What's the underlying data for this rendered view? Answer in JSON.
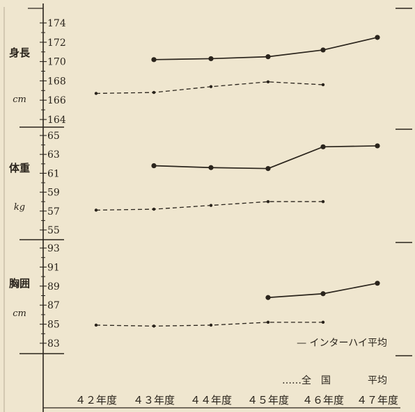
{
  "chart_data": {
    "type": "line",
    "categories": [
      "４２年度",
      "４３年度",
      "４４年度",
      "４５年度",
      "４６年度",
      "４７年度"
    ],
    "panels": [
      {
        "label": "身長",
        "unit": "cm",
        "ylim": [
          163,
          175
        ],
        "ticks": [
          "174",
          "172",
          "170",
          "168",
          "166",
          "164"
        ],
        "series": [
          {
            "name": "インターハイ平均",
            "values": [
              null,
              170.2,
              170.3,
              170.5,
              171.2,
              172.5
            ]
          },
          {
            "name": "全国平均",
            "values": [
              166.7,
              166.8,
              167.4,
              167.9,
              167.6,
              null
            ]
          }
        ]
      },
      {
        "label": "体重",
        "unit": "kg",
        "ylim": [
          54,
          66
        ],
        "ticks": [
          "65",
          "63",
          "61",
          "59",
          "57",
          "55"
        ],
        "series": [
          {
            "name": "インターハイ平均",
            "values": [
              null,
              61.8,
              61.6,
              61.5,
              63.8,
              63.9
            ]
          },
          {
            "name": "全国平均",
            "values": [
              57.1,
              57.2,
              57.6,
              58.0,
              58.0,
              null
            ]
          }
        ]
      },
      {
        "label": "胸囲",
        "unit": "cm",
        "ylim": [
          82,
          94
        ],
        "ticks": [
          "93",
          "91",
          "89",
          "87",
          "85",
          "83"
        ],
        "series": [
          {
            "name": "インターハイ平均",
            "values": [
              null,
              null,
              null,
              87.8,
              88.2,
              89.3
            ]
          },
          {
            "name": "全国平均",
            "values": [
              84.9,
              84.8,
              84.9,
              85.2,
              85.2,
              null
            ]
          }
        ]
      }
    ],
    "legend": {
      "inter": "— インターハイ平均",
      "national_prefix": "……全　国",
      "national_suffix": "平均"
    },
    "colors": {
      "line": "#2a241c",
      "background": "#efe6cf"
    }
  }
}
